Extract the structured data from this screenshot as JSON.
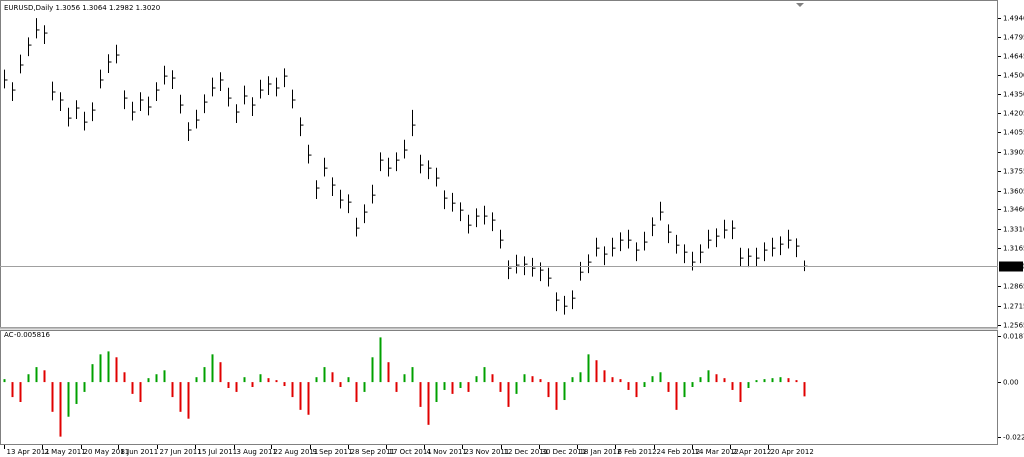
{
  "chart_data": [
    {
      "type": "ohlc",
      "title": "EURUSD,Daily  1.3056 1.3064 1.2982 1.3020",
      "color": "#000000",
      "close": [
        1.4461,
        1.4383,
        1.4577,
        1.4731,
        1.4848,
        1.4824,
        1.4368,
        1.4306,
        1.4166,
        1.4244,
        1.4135,
        1.4228,
        1.4461,
        1.46,
        1.4654,
        1.4321,
        1.4213,
        1.4306,
        1.4252,
        1.4383,
        1.4491,
        1.4476,
        1.4267,
        1.4074,
        1.4151,
        1.429,
        1.4399,
        1.4461,
        1.4321,
        1.4213,
        1.4337,
        1.4267,
        1.4383,
        1.443,
        1.4399,
        1.4491,
        1.4306,
        1.4112,
        1.388,
        1.3625,
        1.3779,
        1.3648,
        1.3532,
        1.3516,
        1.3315,
        1.3439,
        1.357,
        1.3841,
        1.3779,
        1.3841,
        1.3919,
        1.4112,
        1.3803,
        1.3779,
        1.3702,
        1.3547,
        1.3508,
        1.3454,
        1.3338,
        1.3408,
        1.3408,
        1.3377,
        1.3222,
        1.3005,
        1.3029,
        1.3036,
        1.3005,
        1.299,
        1.2928,
        1.2758,
        1.2711,
        1.2773,
        1.2974,
        1.3052,
        1.316,
        1.3114,
        1.316,
        1.3222,
        1.3222,
        1.3145,
        1.3207,
        1.3338,
        1.3439,
        1.3284,
        1.3183,
        1.3129,
        1.3052,
        1.3129,
        1.3222,
        1.3253,
        1.33,
        1.3315,
        1.3083,
        1.3098,
        1.3083,
        1.3145,
        1.316,
        1.3191,
        1.3222,
        1.3176,
        1.302
      ],
      "high": [
        1.4541,
        1.4443,
        1.4657,
        1.4791,
        1.494,
        1.4884,
        1.4448,
        1.4366,
        1.4246,
        1.4304,
        1.4215,
        1.4288,
        1.4541,
        1.466,
        1.4734,
        1.4381,
        1.4293,
        1.4366,
        1.4332,
        1.4443,
        1.4571,
        1.4536,
        1.4347,
        1.4134,
        1.4231,
        1.435,
        1.4479,
        1.4521,
        1.4401,
        1.4273,
        1.4417,
        1.4327,
        1.4463,
        1.449,
        1.4479,
        1.4551,
        1.4386,
        1.4172,
        1.396,
        1.3685,
        1.3859,
        1.3708,
        1.3612,
        1.3576,
        1.3395,
        1.3499,
        1.365,
        1.3901,
        1.3859,
        1.3901,
        1.3999,
        1.423,
        1.3883,
        1.3839,
        1.3782,
        1.3607,
        1.3588,
        1.3514,
        1.3418,
        1.3468,
        1.3488,
        1.3437,
        1.3302,
        1.3065,
        1.3109,
        1.3096,
        1.3085,
        1.305,
        1.3008,
        1.2818,
        1.2791,
        1.2833,
        1.3054,
        1.3112,
        1.324,
        1.3174,
        1.324,
        1.3282,
        1.3302,
        1.3205,
        1.3287,
        1.3398,
        1.3519,
        1.3344,
        1.3263,
        1.3189,
        1.3132,
        1.3189,
        1.3302,
        1.3313,
        1.338,
        1.3375,
        1.3163,
        1.3158,
        1.3163,
        1.3205,
        1.324,
        1.3251,
        1.3302,
        1.3236,
        1.3064
      ],
      "low": [
        1.4396,
        1.4298,
        1.4512,
        1.4646,
        1.4783,
        1.4739,
        1.4303,
        1.4221,
        1.4101,
        1.4159,
        1.407,
        1.4143,
        1.4396,
        1.4515,
        1.4589,
        1.4236,
        1.4148,
        1.4221,
        1.4187,
        1.4298,
        1.4426,
        1.4391,
        1.4202,
        1.3989,
        1.4086,
        1.4205,
        1.4334,
        1.4376,
        1.4256,
        1.4128,
        1.4272,
        1.4182,
        1.4318,
        1.4345,
        1.4334,
        1.4406,
        1.4241,
        1.4027,
        1.3815,
        1.354,
        1.3714,
        1.3563,
        1.3467,
        1.3431,
        1.325,
        1.3354,
        1.3505,
        1.3756,
        1.3714,
        1.3756,
        1.3854,
        1.4027,
        1.3738,
        1.3694,
        1.3637,
        1.3462,
        1.3443,
        1.3369,
        1.3273,
        1.3323,
        1.3343,
        1.3292,
        1.3157,
        1.292,
        1.2964,
        1.2951,
        1.294,
        1.2905,
        1.2863,
        1.2673,
        1.2646,
        1.2688,
        1.2909,
        1.2967,
        1.3095,
        1.3029,
        1.3095,
        1.3137,
        1.3157,
        1.306,
        1.3142,
        1.3253,
        1.3374,
        1.3199,
        1.3118,
        1.3044,
        1.2987,
        1.3044,
        1.3157,
        1.3168,
        1.3235,
        1.323,
        1.3018,
        1.3013,
        1.3018,
        1.306,
        1.3095,
        1.3106,
        1.3157,
        1.3091,
        1.2982
      ],
      "ylim": [
        1.255,
        1.5072
      ],
      "yticks": [
        {
          "value": 1.494,
          "label": "1.4940"
        },
        {
          "value": 1.4795,
          "label": "1.4795"
        },
        {
          "value": 1.4645,
          "label": "1.4645"
        },
        {
          "value": 1.45,
          "label": "1.4500"
        },
        {
          "value": 1.435,
          "label": "1.4350"
        },
        {
          "value": 1.4205,
          "label": "1.4205"
        },
        {
          "value": 1.4055,
          "label": "1.4055"
        },
        {
          "value": 1.3905,
          "label": "1.3905"
        },
        {
          "value": 1.3755,
          "label": "1.3755"
        },
        {
          "value": 1.3605,
          "label": "1.3605"
        },
        {
          "value": 1.346,
          "label": "1.3460"
        },
        {
          "value": 1.331,
          "label": "1.3310"
        },
        {
          "value": 1.3165,
          "label": "1.3165"
        },
        {
          "value": 1.2865,
          "label": "1.2865"
        },
        {
          "value": 1.2715,
          "label": "1.2715"
        },
        {
          "value": 1.2565,
          "label": "1.2565"
        }
      ],
      "current_price": {
        "value": 1.302,
        "label": "1.3020"
      }
    },
    {
      "type": "histogram",
      "title": "AC",
      "up_color": "#00a000",
      "down_color": "#e00000",
      "values": [
        0.0012,
        -0.0061,
        -0.0081,
        0.0032,
        0.0061,
        0.0048,
        -0.0121,
        -0.0222,
        -0.0141,
        -0.0089,
        -0.004,
        0.0073,
        0.0113,
        0.0125,
        0.0101,
        0.004,
        -0.0048,
        -0.0081,
        0.0016,
        0.0032,
        0.0048,
        -0.0061,
        -0.0121,
        -0.0149,
        0.002,
        0.0061,
        0.0113,
        0.0081,
        -0.0024,
        -0.004,
        0.002,
        -0.002,
        0.0032,
        0.0016,
        0.0008,
        -0.0016,
        -0.0061,
        -0.0113,
        -0.0133,
        0.002,
        0.0061,
        0.004,
        -0.002,
        0.002,
        -0.0081,
        -0.004,
        0.0101,
        0.0182,
        0.0081,
        -0.004,
        0.0032,
        0.0061,
        -0.0101,
        -0.0174,
        -0.0081,
        -0.0032,
        -0.0048,
        -0.0024,
        -0.004,
        0.0024,
        0.0061,
        0.0032,
        -0.004,
        -0.0101,
        -0.0048,
        0.0032,
        0.0024,
        0.0012,
        -0.0061,
        -0.0113,
        -0.0073,
        0.002,
        0.004,
        0.0113,
        0.0089,
        0.0048,
        0.002,
        0.0012,
        -0.0032,
        -0.0061,
        -0.002,
        0.0024,
        0.004,
        -0.004,
        -0.0113,
        -0.0061,
        -0.002,
        0.002,
        0.0048,
        0.0032,
        0.0016,
        -0.0032,
        -0.0081,
        -0.0024,
        0.0008,
        0.0012,
        0.0016,
        0.002,
        0.0016,
        0.0008,
        -0.005816
      ],
      "ylim": [
        -0.0252,
        0.0208
      ],
      "yticks": [
        0.018791,
        {
          "value": 0,
          "label": "0.00"
        },
        {
          "value": -0.02237,
          "label": "-0.022370"
        }
      ],
      "xticks": [
        {
          "value": 0,
          "label": "13 Apr 2011"
        },
        {
          "value": 4.8,
          "label": "2 May 2011"
        },
        {
          "value": 9.6,
          "label": "20 May 2011"
        },
        {
          "value": 14.3,
          "label": "8 Jun 2011"
        },
        {
          "value": 19.1,
          "label": "27 Jun 2011"
        },
        {
          "value": 23.9,
          "label": "15 Jul 2011"
        },
        {
          "value": 28.7,
          "label": "3 Aug 2011"
        },
        {
          "value": 33.4,
          "label": "22 Aug 2011"
        },
        {
          "value": 38.2,
          "label": "9 Sep 2011"
        },
        {
          "value": 43,
          "label": "28 Sep 2011"
        },
        {
          "value": 47.8,
          "label": "17 Oct 2011"
        },
        {
          "value": 52.5,
          "label": "4 Nov 2011"
        },
        {
          "value": 57.3,
          "label": "23 Nov 2011"
        },
        {
          "value": 62.1,
          "label": "12 Dec 2011"
        },
        {
          "value": 66.9,
          "label": "30 Dec 2011"
        },
        {
          "value": 71.6,
          "label": "18 Jan 2012"
        },
        {
          "value": 76.4,
          "label": "6 Feb 2012"
        },
        {
          "value": 81.2,
          "label": "24 Feb 2012"
        },
        {
          "value": 86,
          "label": "14 Mar 2012"
        },
        {
          "value": 90.7,
          "label": "2 Apr 2012"
        },
        {
          "value": 95.5,
          "label": "20 Apr 2012"
        }
      ]
    }
  ]
}
